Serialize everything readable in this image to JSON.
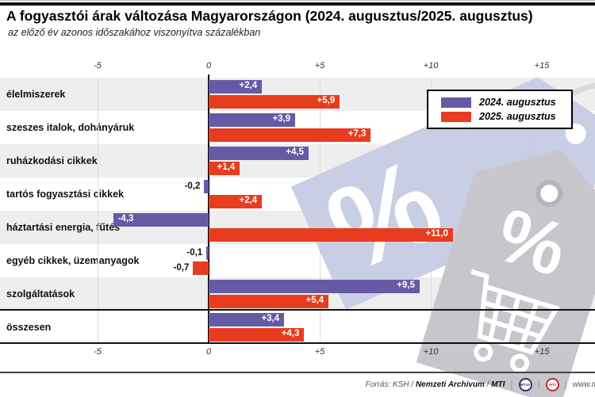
{
  "header": {
    "title": "A fogyasztói árak változása Magyarországon (2024. augusztus/2025. augusztus)",
    "subtitle": "az előző év azonos időszakához viszonyítva százalékban"
  },
  "legend": {
    "items": [
      {
        "label": "2024. augusztus",
        "color": "#675aa5"
      },
      {
        "label": "2025. augusztus",
        "color": "#e73c1e"
      }
    ]
  },
  "chart_data": {
    "type": "bar",
    "orientation": "horizontal",
    "title": "A fogyasztói árak változása Magyarországon (2024. augusztus/2025. augusztus)",
    "subtitle": "az előző év azonos időszakához viszonyítva százalékban",
    "unit": "%",
    "categories": [
      "élelmiszerek",
      "szeszes italok, dohányáruk",
      "ruházkodási cikkek",
      "tartós fogyasztási cikkek",
      "háztartási energia, fűtés",
      "egyéb cikkek, üzemanyagok",
      "szolgáltatások",
      "összesen"
    ],
    "series": [
      {
        "name": "2024. augusztus",
        "color": "#675aa5",
        "values": [
          2.4,
          3.9,
          4.5,
          -0.2,
          -4.3,
          -0.1,
          9.5,
          3.4
        ],
        "labels": [
          "+2,4",
          "+3,9",
          "+4,5",
          "-0,2",
          "-4,3",
          "-0,1",
          "+9,5",
          "+3,4"
        ]
      },
      {
        "name": "2025. augusztus",
        "color": "#e73c1e",
        "values": [
          5.9,
          7.3,
          1.4,
          2.4,
          11.0,
          -0.7,
          5.4,
          4.3
        ],
        "labels": [
          "+5,9",
          "+7,3",
          "+1,4",
          "+2,4",
          "+11,0",
          "-0,7",
          "+5,4",
          "+4,3"
        ]
      }
    ],
    "axis": {
      "range": [
        -9.4,
        17.4
      ],
      "ticks": [
        {
          "value": -5,
          "label": "-5"
        },
        {
          "value": 0,
          "label": "0"
        },
        {
          "value": 5,
          "label": "+5"
        },
        {
          "value": 10,
          "label": "+10"
        },
        {
          "value": 15,
          "label": "+15"
        }
      ],
      "grid": true
    },
    "legend_position": "top-right",
    "summary_row": "összesen"
  },
  "footer": {
    "source_prefix": "Forrás: KSH / ",
    "source_bold1": "Nemzeti Archivum",
    "source_mid": " / ",
    "source_bold2": "MTI",
    "badges": [
      {
        "label": "MTVA"
      },
      {
        "label": "MTI"
      }
    ],
    "website": "www.m"
  }
}
